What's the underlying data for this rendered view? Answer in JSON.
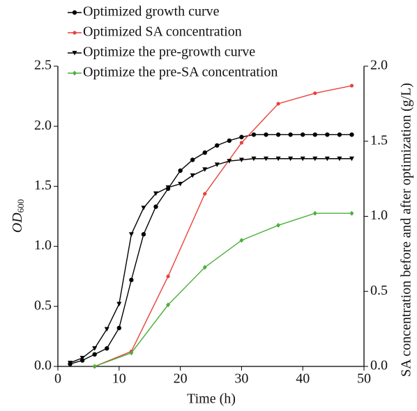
{
  "chart_data": {
    "type": "line",
    "xlabel": "Time (h)",
    "ylabel": "OD",
    "ylabel_subscript": "600",
    "y2label": "SA concentration before and after optimization (g/L)",
    "xlim": [
      0,
      50
    ],
    "xticks": [
      0,
      10,
      20,
      30,
      40,
      50
    ],
    "ylim": [
      0,
      2.5
    ],
    "yticks": [
      {
        "value": 0,
        "label": "0.0"
      },
      0.5,
      {
        "value": 1,
        "label": "1.0"
      },
      1.5,
      {
        "value": 2,
        "label": "2.0"
      },
      2.5
    ],
    "y2lim": [
      0,
      2
    ],
    "y2ticks": [
      {
        "value": 0,
        "label": "0.0"
      },
      0.5,
      {
        "value": 1,
        "label": "1.0"
      },
      1.5,
      {
        "value": 2,
        "label": "2.0"
      }
    ],
    "legend": "top-left",
    "series": [
      {
        "name": "Optimized growth curve",
        "color": "#000000",
        "marker": "circle",
        "x": [
          2,
          4,
          6,
          8,
          10,
          12,
          14,
          16,
          18,
          20,
          22,
          24,
          26,
          28,
          30,
          32,
          34,
          36,
          38,
          40,
          42,
          44,
          46,
          48
        ],
        "values": [
          0.02,
          0.05,
          0.1,
          0.15,
          0.32,
          0.72,
          1.1,
          1.33,
          1.48,
          1.63,
          1.72,
          1.78,
          1.84,
          1.88,
          1.91,
          1.93,
          1.93,
          1.93,
          1.93,
          1.93,
          1.93,
          1.93,
          1.93,
          1.93
        ]
      },
      {
        "name": "Optimized SA concentration",
        "color": "#e8413b",
        "marker": "dot",
        "axis": "y2",
        "x": [
          6,
          12,
          18,
          24,
          30,
          36,
          42,
          48
        ],
        "values": [
          0,
          0.1,
          0.6,
          1.15,
          1.49,
          1.75,
          1.82,
          1.87
        ]
      },
      {
        "name": "Optimize the pre-growth curve",
        "color": "#000000",
        "marker": "triangle-down",
        "x": [
          2,
          4,
          6,
          8,
          10,
          12,
          14,
          16,
          18,
          20,
          22,
          24,
          26,
          28,
          30,
          32,
          34,
          36,
          38,
          40,
          42,
          44,
          46,
          48
        ],
        "values": [
          0.03,
          0.07,
          0.15,
          0.31,
          0.52,
          1.1,
          1.32,
          1.44,
          1.49,
          1.52,
          1.59,
          1.64,
          1.68,
          1.71,
          1.72,
          1.73,
          1.73,
          1.73,
          1.73,
          1.73,
          1.73,
          1.73,
          1.73,
          1.73
        ]
      },
      {
        "name": "Optimize the pre-SA concentration",
        "color": "#4caf3c",
        "marker": "diamond",
        "axis": "y2",
        "x": [
          6,
          12,
          18,
          24,
          30,
          36,
          42,
          48
        ],
        "values": [
          0,
          0.09,
          0.41,
          0.66,
          0.84,
          0.94,
          1.02,
          1.02
        ]
      }
    ]
  }
}
